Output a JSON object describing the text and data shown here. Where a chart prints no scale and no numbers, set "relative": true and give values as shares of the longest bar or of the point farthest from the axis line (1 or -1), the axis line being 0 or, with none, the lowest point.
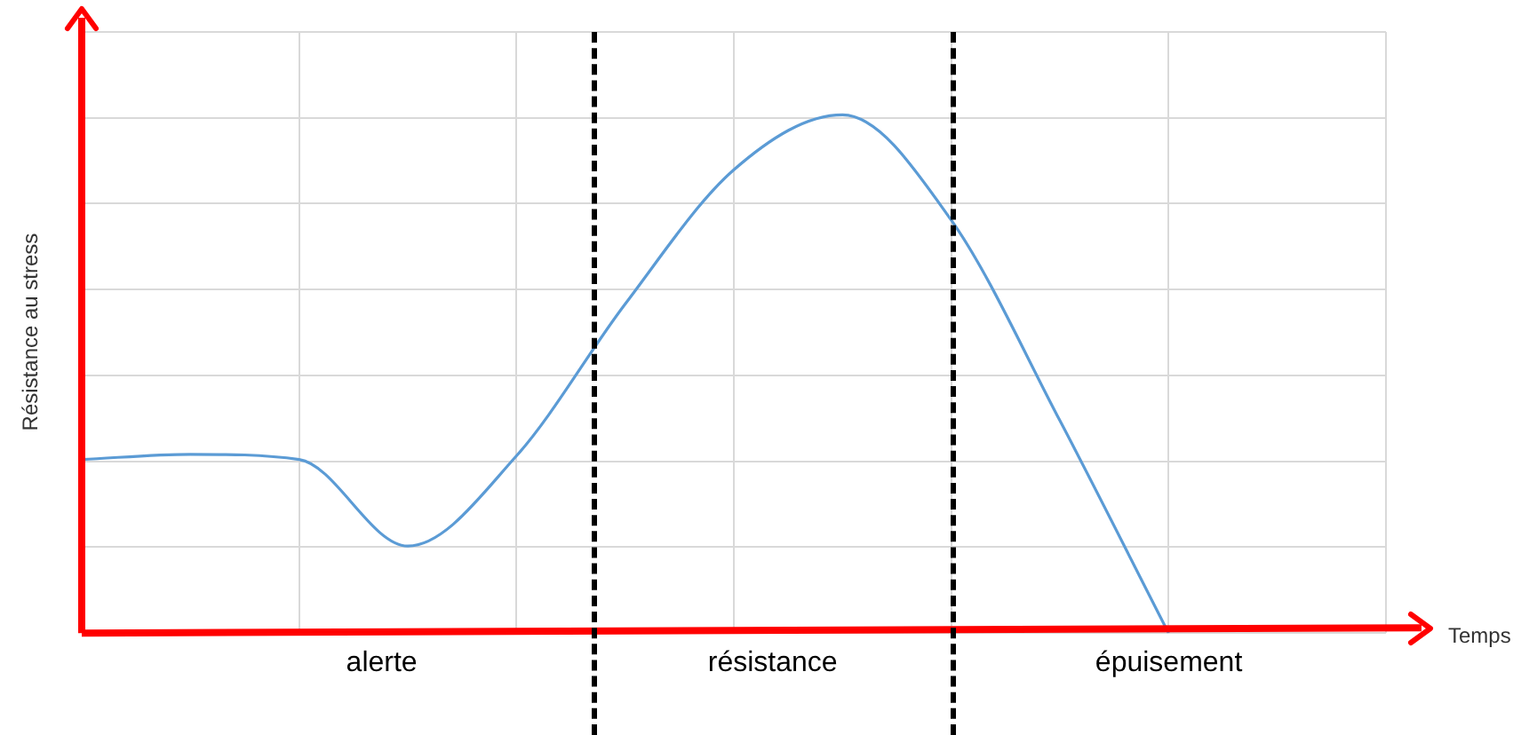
{
  "chart_data": {
    "type": "line",
    "relative": true,
    "ylabel": "Résistance au stress",
    "xlabel": "Temps",
    "categories": [
      null,
      null,
      null,
      null,
      null,
      null,
      null,
      null,
      null,
      null,
      null,
      null,
      null
    ],
    "series": [
      {
        "color": "#5b9bd5",
        "values": [
          0.335,
          0.345,
          0.335,
          0.168,
          0.342,
          0.635,
          0.894,
          1,
          0.797,
          0.41,
          0,
          null,
          null
        ]
      }
    ],
    "annotations": [
      "alerte",
      "résistance",
      "épuisement"
    ],
    "grid": true,
    "legend": false,
    "marker": "none",
    "line_style": "solid"
  }
}
